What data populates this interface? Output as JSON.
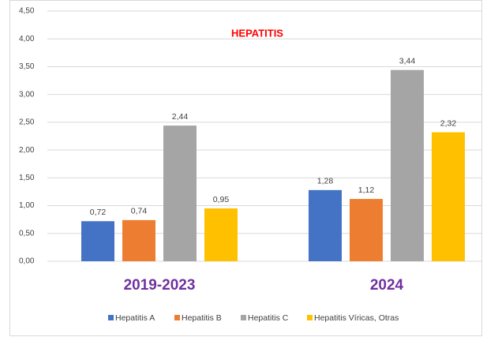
{
  "chart_data": {
    "type": "bar",
    "title": "HEPATITIS",
    "categories": [
      "2019-2023",
      "2024"
    ],
    "series": [
      {
        "name": "Hepatitis A",
        "color": "#4472c4",
        "values": [
          0.72,
          1.28
        ],
        "value_labels": [
          "0,72",
          "1,28"
        ]
      },
      {
        "name": "Hepatitis B",
        "color": "#ed7d31",
        "values": [
          0.74,
          1.12
        ],
        "value_labels": [
          "0,74",
          "1,12"
        ]
      },
      {
        "name": "Hepatitis C",
        "color": "#a5a5a5",
        "values": [
          2.44,
          3.44
        ],
        "value_labels": [
          "2,44",
          "3,44"
        ]
      },
      {
        "name": "Hepatitis Víricas, Otras",
        "color": "#ffc000",
        "values": [
          0.95,
          2.32
        ],
        "value_labels": [
          "0,95",
          "2,32"
        ]
      }
    ],
    "ylim": [
      0,
      4.5
    ],
    "yticks": [
      {
        "value": 0,
        "label": "0,00"
      },
      {
        "value": 0.5,
        "label": "0,50"
      },
      {
        "value": 1,
        "label": "1,00"
      },
      {
        "value": 1.5,
        "label": "1,50"
      },
      {
        "value": 2,
        "label": "2,00"
      },
      {
        "value": 2.5,
        "label": "2,50"
      },
      {
        "value": 3,
        "label": "3,00"
      },
      {
        "value": 3.5,
        "label": "3,50"
      },
      {
        "value": 4,
        "label": "4,00"
      },
      {
        "value": 4.5,
        "label": "4,50"
      }
    ],
    "grid": true,
    "legend": "bottom"
  }
}
